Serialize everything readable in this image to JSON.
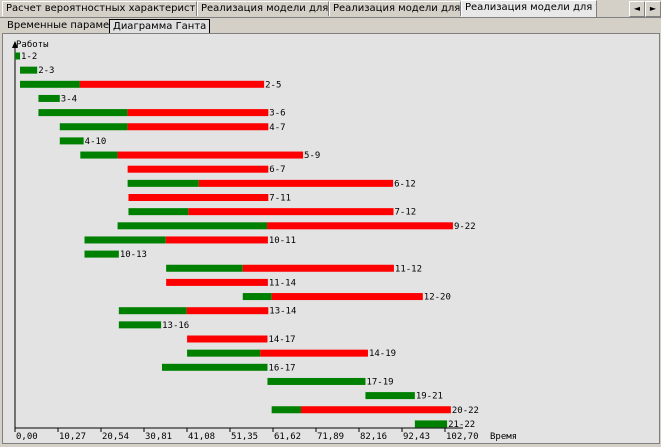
{
  "tabs": [
    {
      "label": "Расчет вероятностных характеристик L_kp",
      "active": false
    },
    {
      "label": "Реализация модели для tавg",
      "active": false
    },
    {
      "label": "Реализация модели для tmin",
      "active": false
    },
    {
      "label": "Реализация модели для tmax",
      "active": true
    }
  ],
  "scroll": {
    "left": "◄",
    "right": "►"
  },
  "subtabs": [
    {
      "label": "Временные параметры",
      "active": false
    },
    {
      "label": "Диаграмма Ганта",
      "active": true
    }
  ],
  "chart_data": {
    "type": "gantt",
    "ylabel": "Работы",
    "xlabel": "Время",
    "xlim": [
      0,
      102.7
    ],
    "xticks": [
      "0,00",
      "10,27",
      "20,54",
      "30,81",
      "41,08",
      "51,35",
      "61,62",
      "71,89",
      "82,16",
      "92,43",
      "102,70"
    ],
    "colors": {
      "duration": "#008000",
      "reserve": "#ff0000"
    },
    "series_names": [
      "duration",
      "reserve"
    ],
    "tasks": [
      {
        "label": "1-2",
        "start": 0.0,
        "duration": 1.2,
        "reserve": 0.0
      },
      {
        "label": "2-3",
        "start": 1.2,
        "duration": 4.1,
        "reserve": 0.0
      },
      {
        "label": "2-5",
        "start": 1.2,
        "duration": 14.3,
        "reserve": 44.0
      },
      {
        "label": "3-4",
        "start": 5.6,
        "duration": 5.1,
        "reserve": 0.0
      },
      {
        "label": "3-6",
        "start": 5.6,
        "duration": 21.3,
        "reserve": 33.6
      },
      {
        "label": "4-7",
        "start": 10.7,
        "duration": 16.2,
        "reserve": 33.6
      },
      {
        "label": "4-10",
        "start": 10.7,
        "duration": 5.7,
        "reserve": 0.0
      },
      {
        "label": "5-9",
        "start": 15.6,
        "duration": 8.9,
        "reserve": 44.3
      },
      {
        "label": "6-7",
        "start": 26.9,
        "duration": 0.0,
        "reserve": 33.6
      },
      {
        "label": "6-12",
        "start": 26.9,
        "duration": 17.0,
        "reserve": 46.4
      },
      {
        "label": "7-11",
        "start": 27.1,
        "duration": 0.0,
        "reserve": 33.4
      },
      {
        "label": "7-12",
        "start": 27.1,
        "duration": 14.3,
        "reserve": 49.0
      },
      {
        "label": "9-22",
        "start": 24.5,
        "duration": 35.7,
        "reserve": 44.4
      },
      {
        "label": "10-11",
        "start": 16.6,
        "duration": 19.4,
        "reserve": 24.4
      },
      {
        "label": "10-13",
        "start": 16.6,
        "duration": 8.2,
        "reserve": 0.0
      },
      {
        "label": "11-12",
        "start": 36.1,
        "duration": 18.3,
        "reserve": 36.1
      },
      {
        "label": "11-14",
        "start": 36.1,
        "duration": 0.0,
        "reserve": 24.3
      },
      {
        "label": "12-20",
        "start": 54.4,
        "duration": 6.9,
        "reserve": 36.1
      },
      {
        "label": "13-14",
        "start": 24.8,
        "duration": 16.2,
        "reserve": 19.5
      },
      {
        "label": "13-16",
        "start": 24.8,
        "duration": 10.1,
        "reserve": 0.0
      },
      {
        "label": "14-17",
        "start": 41.1,
        "duration": 0.0,
        "reserve": 19.2
      },
      {
        "label": "14-19",
        "start": 41.1,
        "duration": 17.5,
        "reserve": 25.7
      },
      {
        "label": "16-17",
        "start": 35.1,
        "duration": 25.2,
        "reserve": 0.0
      },
      {
        "label": "17-19",
        "start": 60.3,
        "duration": 23.4,
        "reserve": 0.0
      },
      {
        "label": "19-21",
        "start": 83.7,
        "duration": 11.8,
        "reserve": 0.0
      },
      {
        "label": "20-22",
        "start": 61.3,
        "duration": 7.0,
        "reserve": 35.8
      },
      {
        "label": "21-22",
        "start": 95.5,
        "duration": 7.7,
        "reserve": 0.0
      }
    ]
  }
}
